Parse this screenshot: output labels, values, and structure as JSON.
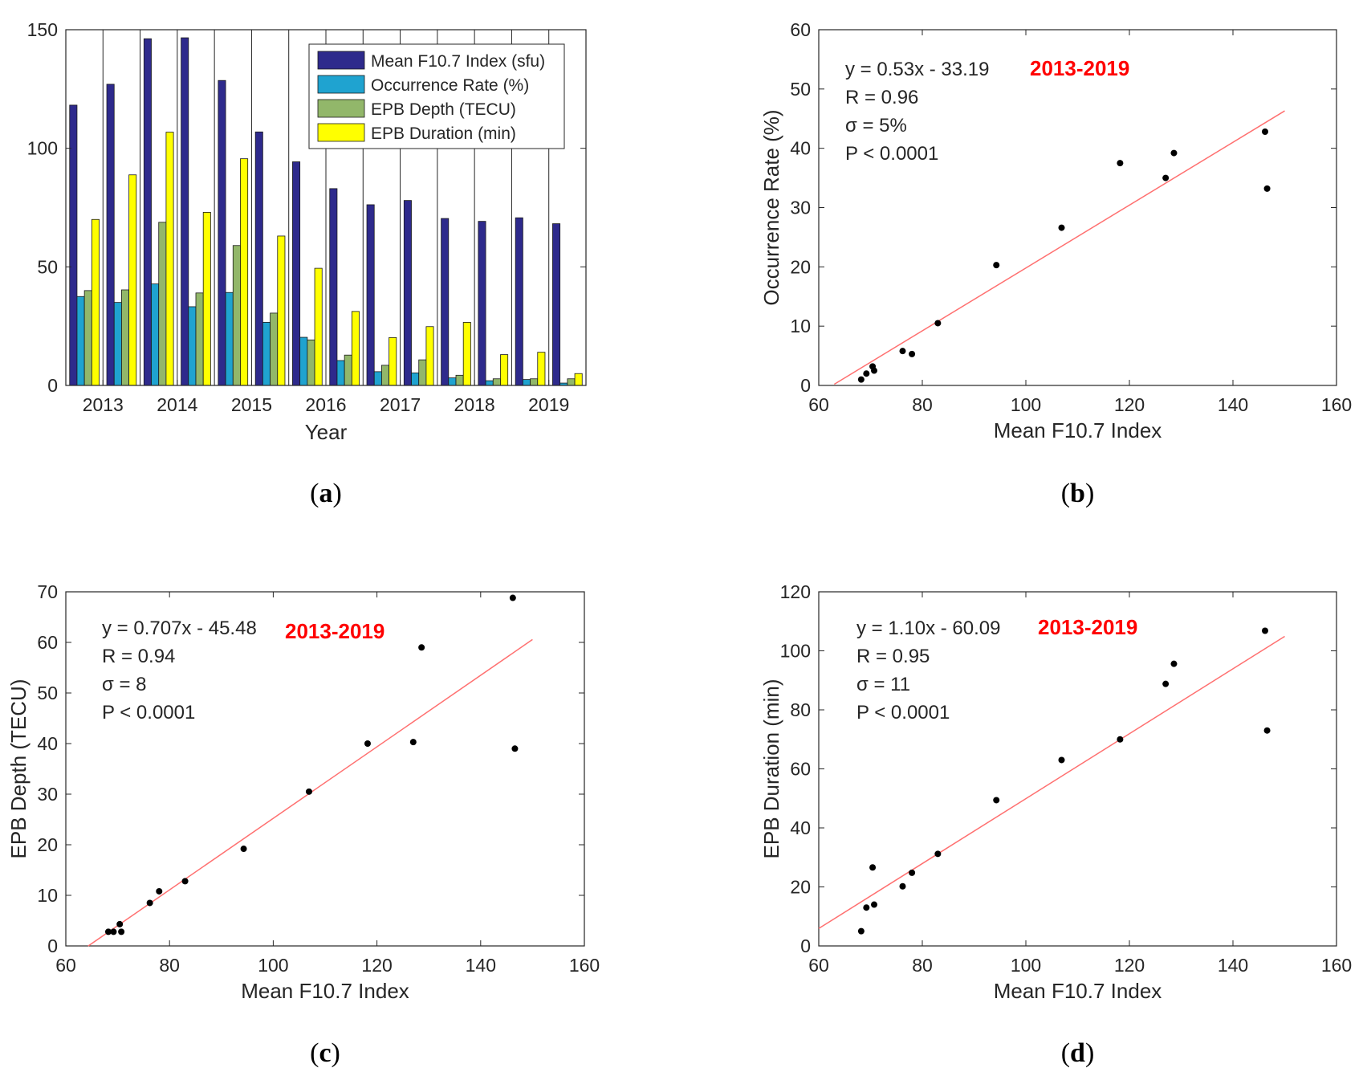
{
  "colors": {
    "f107": "#2E2A8C",
    "occ": "#1FA3D0",
    "depth": "#92B76A",
    "dur": "#FFFF00",
    "fit": "#FF7070",
    "period": "#FF0000"
  },
  "chart_data": [
    {
      "id": "a",
      "type": "bar",
      "panel_label": "a",
      "title": "",
      "xlabel": "Year",
      "ylabel": "",
      "ylim": [
        0,
        150
      ],
      "yticks": [
        0,
        50,
        100,
        150
      ],
      "groups": [
        "2013",
        "2014",
        "2015",
        "2016",
        "2017",
        "2018",
        "2019"
      ],
      "bars_per_group": 2,
      "legend_position": "top-right",
      "series": [
        {
          "name": "Mean F10.7 Index (sfu)",
          "values": [
            118.2,
            127.0,
            146.2,
            146.6,
            128.6,
            106.9,
            94.3,
            83.0,
            76.2,
            78.0,
            70.4,
            69.2,
            70.7,
            68.2
          ]
        },
        {
          "name": "Occurrence Rate (%)",
          "values": [
            37.5,
            35.0,
            42.8,
            33.2,
            39.2,
            26.6,
            20.3,
            10.5,
            5.8,
            5.3,
            3.2,
            2.0,
            2.5,
            1.0
          ]
        },
        {
          "name": "EPB Depth (TECU)",
          "values": [
            40.0,
            40.3,
            68.8,
            39.0,
            59.0,
            30.5,
            19.2,
            12.8,
            8.5,
            10.8,
            4.3,
            2.8,
            2.8,
            2.8
          ]
        },
        {
          "name": "EPB Duration (min)",
          "values": [
            70.0,
            88.8,
            106.8,
            73.0,
            95.6,
            63.0,
            49.4,
            31.2,
            20.2,
            24.8,
            26.6,
            13.0,
            14.0,
            5.0
          ]
        }
      ]
    },
    {
      "id": "b",
      "type": "scatter",
      "panel_label": "b",
      "title": "",
      "xlabel": "Mean F10.7 Index",
      "ylabel": "Occurrence Rate (%)",
      "xlim": [
        60,
        160
      ],
      "ylim": [
        0,
        60
      ],
      "xticks": [
        60,
        80,
        100,
        120,
        140,
        160
      ],
      "yticks": [
        0,
        10,
        20,
        30,
        40,
        50,
        60
      ],
      "points": [
        [
          118.2,
          37.5
        ],
        [
          127.0,
          35.0
        ],
        [
          146.2,
          42.8
        ],
        [
          146.6,
          33.2
        ],
        [
          128.6,
          39.2
        ],
        [
          106.9,
          26.6
        ],
        [
          94.3,
          20.3
        ],
        [
          83.0,
          10.5
        ],
        [
          76.2,
          5.8
        ],
        [
          78.0,
          5.3
        ],
        [
          70.4,
          3.2
        ],
        [
          69.2,
          2.0
        ],
        [
          70.7,
          2.5
        ],
        [
          68.2,
          1.0
        ]
      ],
      "fit": {
        "slope": 0.53,
        "intercept": -33.19,
        "x_range": [
          63,
          150
        ]
      },
      "annotations": [
        "y = 0.53x - 33.19",
        "R = 0.96",
        "σ = 5%",
        "P < 0.0001"
      ],
      "period": "2013-2019"
    },
    {
      "id": "c",
      "type": "scatter",
      "panel_label": "c",
      "title": "",
      "xlabel": "Mean F10.7 Index",
      "ylabel": "EPB Depth (TECU)",
      "xlim": [
        60,
        160
      ],
      "ylim": [
        0,
        70
      ],
      "xticks": [
        60,
        80,
        100,
        120,
        140,
        160
      ],
      "yticks": [
        0,
        10,
        20,
        30,
        40,
        50,
        60,
        70
      ],
      "points": [
        [
          118.2,
          40.0
        ],
        [
          127.0,
          40.3
        ],
        [
          146.2,
          68.8
        ],
        [
          146.6,
          39.0
        ],
        [
          128.6,
          59.0
        ],
        [
          106.9,
          30.5
        ],
        [
          94.3,
          19.2
        ],
        [
          83.0,
          12.8
        ],
        [
          76.2,
          8.5
        ],
        [
          78.0,
          10.8
        ],
        [
          70.4,
          4.3
        ],
        [
          69.2,
          2.8
        ],
        [
          70.7,
          2.8
        ],
        [
          68.2,
          2.8
        ]
      ],
      "fit": {
        "slope": 0.707,
        "intercept": -45.48,
        "x_range": [
          64.3,
          150
        ]
      },
      "annotations": [
        "y = 0.707x - 45.48",
        "R = 0.94",
        "σ = 8",
        "P < 0.0001"
      ],
      "period": "2013-2019"
    },
    {
      "id": "d",
      "type": "scatter",
      "panel_label": "d",
      "title": "",
      "xlabel": "Mean F10.7 Index",
      "ylabel": "EPB Duration (min)",
      "xlim": [
        60,
        160
      ],
      "ylim": [
        0,
        120
      ],
      "xticks": [
        60,
        80,
        100,
        120,
        140,
        160
      ],
      "yticks": [
        0,
        20,
        40,
        60,
        80,
        100,
        120
      ],
      "points": [
        [
          118.2,
          70.0
        ],
        [
          127.0,
          88.8
        ],
        [
          146.2,
          106.8
        ],
        [
          146.6,
          73.0
        ],
        [
          128.6,
          95.6
        ],
        [
          106.9,
          63.0
        ],
        [
          94.3,
          49.4
        ],
        [
          83.0,
          31.2
        ],
        [
          76.2,
          20.2
        ],
        [
          78.0,
          24.8
        ],
        [
          70.4,
          26.6
        ],
        [
          69.2,
          13.0
        ],
        [
          70.7,
          14.0
        ],
        [
          68.2,
          5.0
        ]
      ],
      "fit": {
        "slope": 1.1,
        "intercept": -60.09,
        "x_range": [
          60,
          150
        ]
      },
      "annotations": [
        "y = 1.10x - 60.09",
        "R = 0.95",
        "σ = 11",
        "P < 0.0001"
      ],
      "period": "2013-2019"
    }
  ]
}
